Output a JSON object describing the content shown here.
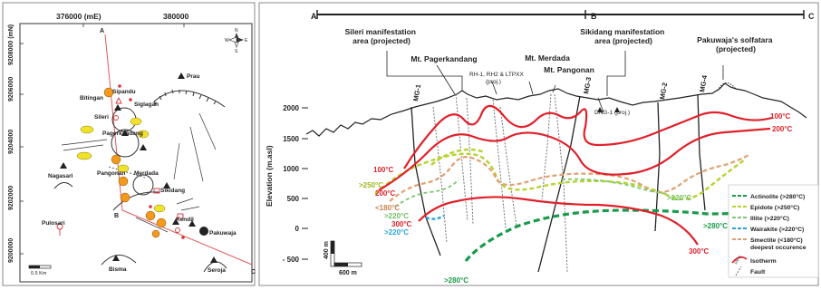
{
  "colors": {
    "isotherm": "#e0202a",
    "actinolite": "#1a9a4a",
    "epidote": "#b6d330",
    "illite": "#7bc96f",
    "wairakite": "#2aa4d8",
    "smectite": "#e2a072",
    "fault": "#555555",
    "well": "#222222",
    "map_track": "#e05a5a",
    "zone_yellow": "#f0e22a",
    "zone_orange": "#f39a1c"
  },
  "map": {
    "grid_labels_x": [
      "376000 (mE)",
      "380000"
    ],
    "grid_labels_y": [
      "9208000 (mN)",
      "9206000",
      "9204000",
      "9202000",
      "9200000"
    ],
    "point_labels": {
      "a": "A",
      "b": "B",
      "c": "C"
    },
    "scale_label": "0.5 Km",
    "north_symbol": {
      "n": "N",
      "s": "S",
      "e": "E",
      "w": "W"
    },
    "places": [
      {
        "id": "prau",
        "label": "Prau"
      },
      {
        "id": "sipandu",
        "label": "Sipandu"
      },
      {
        "id": "bitingan",
        "label": "Bitingan"
      },
      {
        "id": "siglagah",
        "label": "Siglagah"
      },
      {
        "id": "sileri",
        "label": "Sileri"
      },
      {
        "id": "pagerkandang",
        "label": "Pagerkandang"
      },
      {
        "id": "pangonan",
        "label": "Pangonan"
      },
      {
        "id": "merdada",
        "label": "Merdada"
      },
      {
        "id": "nagasari",
        "label": "Nagasari"
      },
      {
        "id": "sikidang",
        "label": "Sikidang"
      },
      {
        "id": "kendil",
        "label": "Kendil"
      },
      {
        "id": "pakuwaja",
        "label": "Pakuwaja"
      },
      {
        "id": "pulosari",
        "label": "Pulosari"
      },
      {
        "id": "bisma",
        "label": "Bisma"
      },
      {
        "id": "seroja",
        "label": "Seroja"
      }
    ]
  },
  "section": {
    "profile_labels": {
      "a": "A",
      "b": "B",
      "c": "C"
    },
    "y_axis_label": "Elevation (m.asl)",
    "y_ticks": [
      "2000",
      "1500",
      "1000",
      "500",
      "0",
      "- 500"
    ],
    "scale_vertical": "400 m",
    "scale_horizontal": "600 m",
    "features": {
      "sileri": "Sileri manifestation area (projected)",
      "sikidang": "Sikidang manifestation area (projected)",
      "pagerkandang": "Mt. Pagerkandang",
      "merdada": "Mt. Merdada",
      "pangonan": "Mt. Pangonan",
      "pakuwaja": "Pakuwaja's solfatara (projected)",
      "rh": "RH-1, RH2 & LTPXX (proj.)",
      "dng": "DNG-1  (proj.)"
    },
    "wells": [
      "MG-1",
      "MG-3",
      "MG-2",
      "MG-4"
    ],
    "iso_labels": {
      "t100_left": "100°C",
      "t100_right": "100°C",
      "t200_left": "200°C",
      "t200_right": "200°C",
      "t300_left": "300°C",
      "t300_right": "300°C",
      "epidote_left": ">250°C",
      "smectite_left": "<180°C",
      "illite_left": ">220°C",
      "wairakite_left": ">220°C",
      "illite_right": ">220°C",
      "actinolite_right": ">280°C",
      "actinolite_bottom": ">280°C"
    },
    "legend": [
      {
        "id": "actinolite",
        "label": "Actinolite (>280°C)"
      },
      {
        "id": "epidote",
        "label": "Epidote (>250°C)"
      },
      {
        "id": "illite",
        "label": "Illite (>220°C)"
      },
      {
        "id": "wairakite",
        "label": "Wairakite (>220°C)"
      },
      {
        "id": "smectite",
        "label": "Smectite (<180°C)"
      },
      {
        "id": "smectite_note",
        "label": "deepest occurence"
      },
      {
        "id": "isotherm",
        "label": "Isotherm"
      },
      {
        "id": "isotherm_sample",
        "label": "100°C"
      },
      {
        "id": "fault",
        "label": "Fault"
      }
    ]
  }
}
